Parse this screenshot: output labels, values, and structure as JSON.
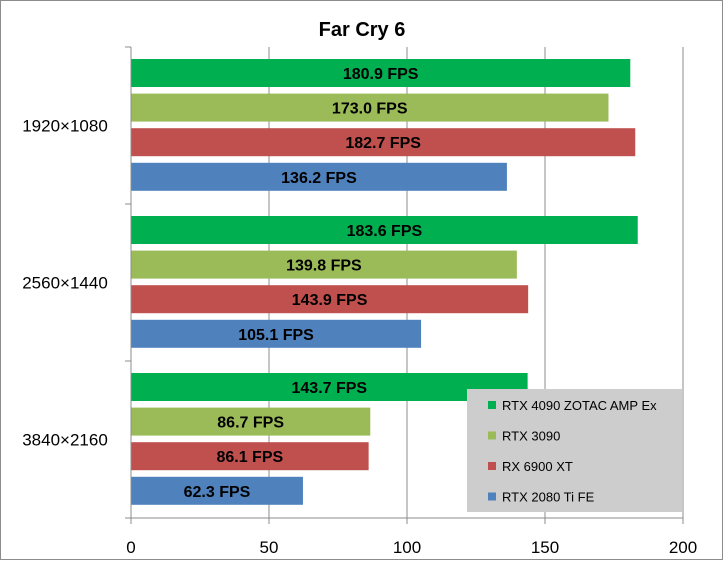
{
  "chart_data": {
    "type": "bar",
    "orientation": "horizontal",
    "title": "Far Cry 6",
    "xlabel": "",
    "ylabel": "",
    "categories": [
      "1920×1080",
      "2560×1440",
      "3840×2160"
    ],
    "series": [
      {
        "name": "RTX 4090 ZOTAC AMP Ex",
        "color": "#00b050",
        "values": [
          180.9,
          183.6,
          143.7
        ],
        "labels": [
          "180.9 FPS",
          "183.6 FPS",
          "143.7 FPS"
        ]
      },
      {
        "name": "RTX 3090",
        "color": "#9bbb59",
        "values": [
          173.0,
          139.8,
          86.7
        ],
        "labels": [
          "173.0 FPS",
          "139.8 FPS",
          "86.7 FPS"
        ]
      },
      {
        "name": "RX 6900 XT",
        "color": "#c0504d",
        "values": [
          182.7,
          143.9,
          86.1
        ],
        "labels": [
          "182.7 FPS",
          "143.9 FPS",
          "86.1 FPS"
        ]
      },
      {
        "name": "RTX 2080 Ti FE",
        "color": "#4f81bd",
        "values": [
          136.2,
          105.1,
          62.3
        ],
        "labels": [
          "136.2 FPS",
          "105.1 FPS",
          "62.3 FPS"
        ]
      }
    ],
    "xlim": [
      0,
      200
    ],
    "xticks": [
      0,
      50,
      100,
      150,
      200
    ],
    "grid": true,
    "legend": "bottom-right"
  }
}
